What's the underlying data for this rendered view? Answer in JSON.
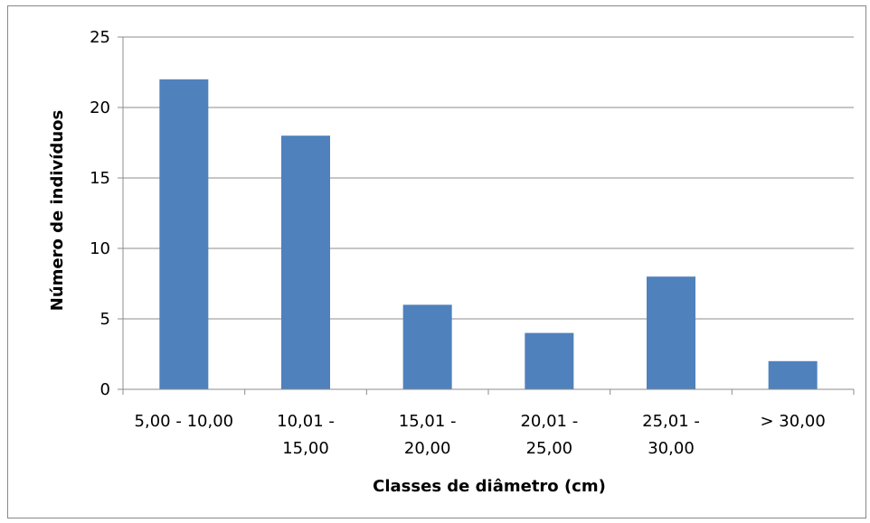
{
  "chart_data": {
    "type": "bar",
    "categories": [
      [
        "5,00 - 10,00"
      ],
      [
        "10,01 -",
        "15,00"
      ],
      [
        "15,01 -",
        "20,00"
      ],
      [
        "20,01 -",
        "25,00"
      ],
      [
        "25,01 -",
        "30,00"
      ],
      [
        "> 30,00"
      ]
    ],
    "values": [
      22,
      18,
      6,
      4,
      8,
      2
    ],
    "title": "",
    "xlabel": "Classes de diâmetro (cm)",
    "ylabel": "Número de indivíduos",
    "ylim": [
      0,
      25
    ],
    "yticks": [
      0,
      5,
      10,
      15,
      20,
      25
    ],
    "grid": true,
    "legend": "none",
    "bar_color": "#4f81bd",
    "grid_color": "#8c8c8c"
  }
}
